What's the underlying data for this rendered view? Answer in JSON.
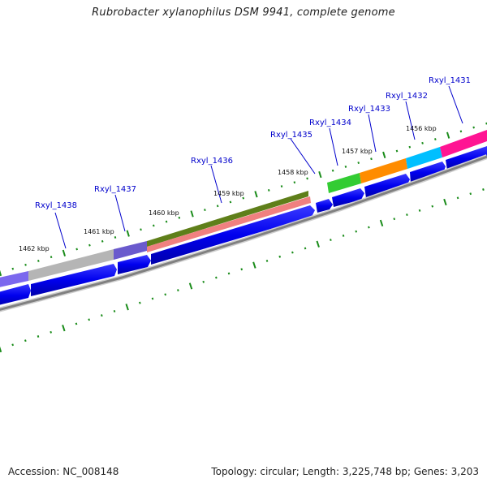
{
  "title": "Rubrobacter xylanophilus DSM 9941, complete genome",
  "footer": {
    "accession": "Accession: NC_008148",
    "summary": "Topology: circular; Length: 3,225,748 bp; Genes: 3,203"
  },
  "kbp_labels": [
    "1462 kbp",
    "1461 kbp",
    "1460 kbp",
    "1459 kbp",
    "1458 kbp",
    "1457 kbp",
    "1456 kbp"
  ],
  "gene_labels": [
    "Rxyl_1438",
    "Rxyl_1437",
    "Rxyl_1436",
    "Rxyl_1435",
    "Rxyl_1434",
    "Rxyl_1433",
    "Rxyl_1432",
    "Rxyl_1431"
  ],
  "colors": {
    "cds_blue": "#0000ee",
    "cog_purple": "#6a5acd",
    "cog_gray": "#b0b0b0",
    "cog_olive": "#5f7f1a",
    "cog_pink": "#f08080",
    "cog_green": "#33cc33",
    "cog_orange": "#ff8c00",
    "cog_cyan": "#00bfff",
    "cog_magenta": "#ff1493",
    "backbone": "#808080",
    "tick_green": "#1a8c1a"
  }
}
